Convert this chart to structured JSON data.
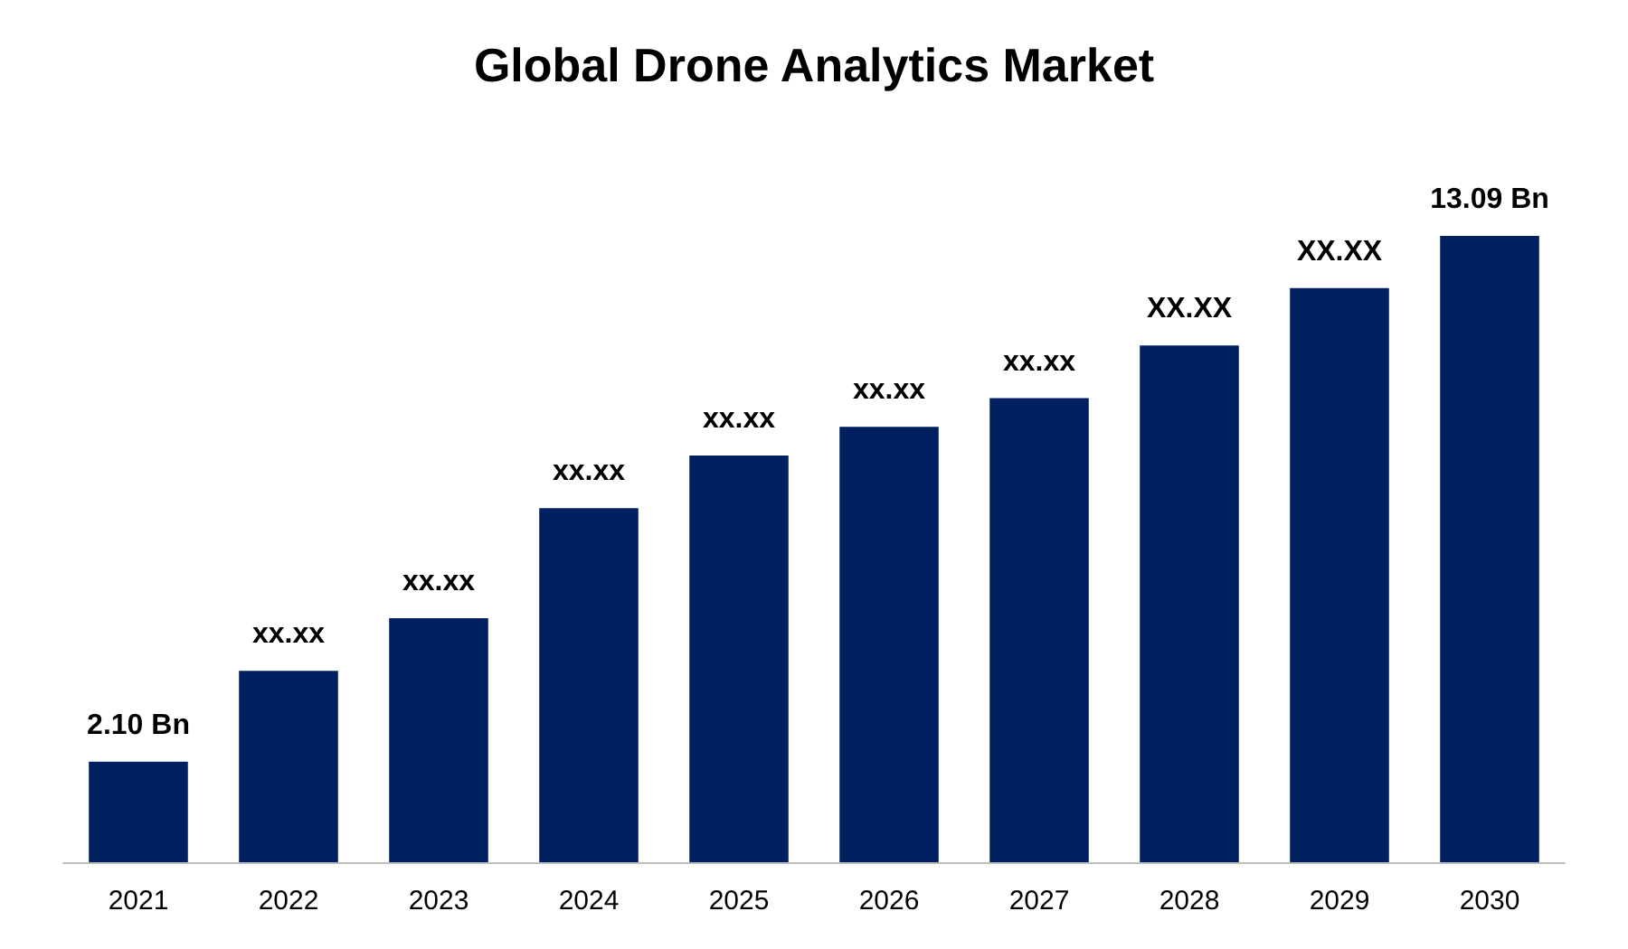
{
  "chart_data": {
    "type": "bar",
    "title": "Global Drone Analytics Market",
    "categories": [
      "2021",
      "2022",
      "2023",
      "2024",
      "2025",
      "2026",
      "2027",
      "2028",
      "2029",
      "2030"
    ],
    "values": [
      2.1,
      4.0,
      5.1,
      7.4,
      8.5,
      9.1,
      9.7,
      10.8,
      12.0,
      13.09
    ],
    "value_labels": [
      "2.10 Bn",
      "xx.xx",
      "xx.xx",
      "xx.xx",
      "xx.xx",
      "xx.xx",
      "xx.xx",
      "XX.XX",
      "XX.XX",
      "13.09 Bn"
    ],
    "color": "#002060",
    "tick_labels": "x",
    "grid": false
  }
}
